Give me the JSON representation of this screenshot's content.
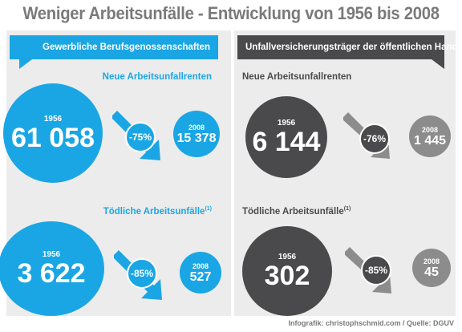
{
  "title": "Weniger Arbeitsunfälle - Entwicklung von 1956 bis 2008",
  "colors": {
    "blue": "#1aa6e4",
    "dark": "#4a4a4c",
    "grey": "#8c8c8c"
  },
  "left": {
    "banner": "Gewerbliche Berufsgenossenschaften",
    "section1": {
      "heading": "Neue Arbeitsunfallrenten",
      "from_year": "1956",
      "from_value": "61 058",
      "change": "-75%",
      "to_year": "2008",
      "to_value": "15 378"
    },
    "section2": {
      "heading": "Tödliche Arbeitsunfälle",
      "footnote": "(1)",
      "from_year": "1956",
      "from_value": "3 622",
      "change": "-85%",
      "to_year": "2008",
      "to_value": "527"
    }
  },
  "right": {
    "banner": "Unfallversicherungsträger der öffentlichen Hand",
    "section1": {
      "heading": "Neue Arbeitsunfallrenten",
      "from_year": "1956",
      "from_value": "6 144",
      "change": "-76%",
      "to_year": "2008",
      "to_value": "1 445"
    },
    "section2": {
      "heading": "Tödliche Arbeitsunfälle",
      "footnote": "(1)",
      "from_year": "1956",
      "from_value": "302",
      "change": "-85%",
      "to_year": "2008",
      "to_value": "45"
    }
  },
  "credit": "Infografik: christophschmid.com / Quelle: DGUV"
}
